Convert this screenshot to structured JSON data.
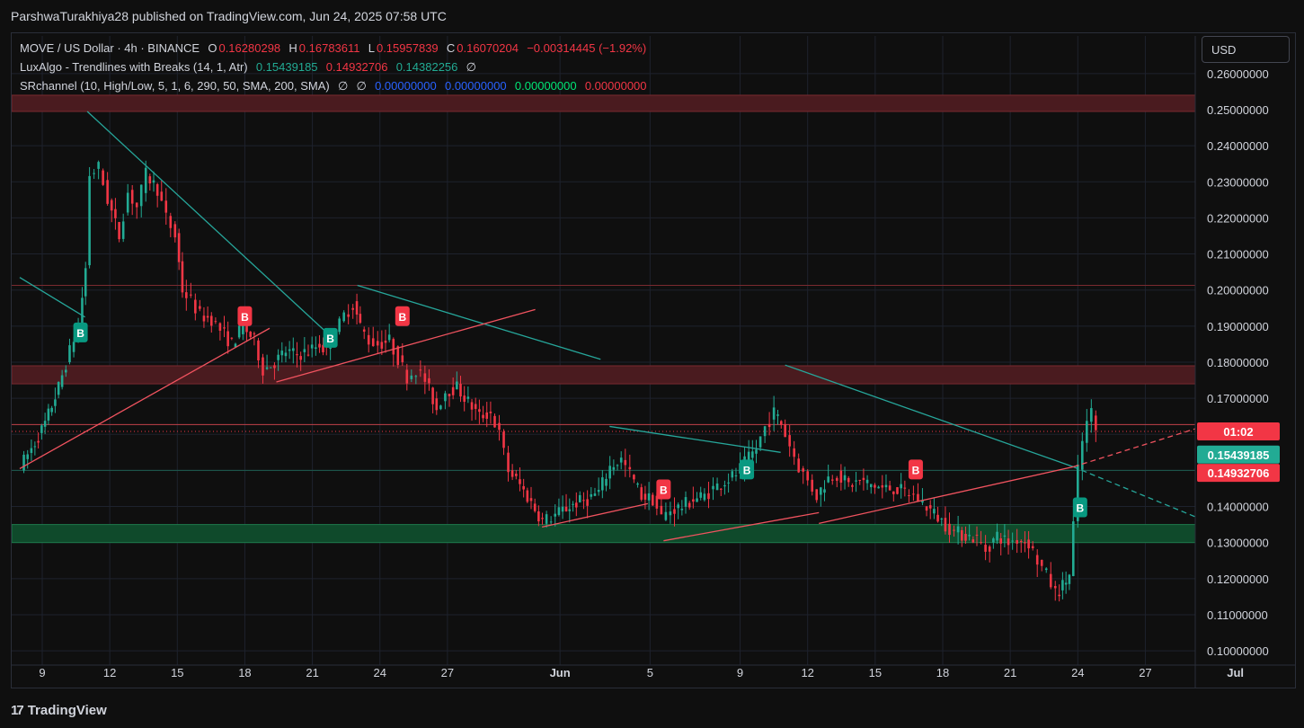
{
  "header": {
    "publish_line": "ParshwaTurakhiya28 published on TradingView.com, Jun 24, 2025 07:58 UTC"
  },
  "legend": {
    "symbol": "MOVE / US Dollar · 4h · BINANCE",
    "o_label": "O",
    "o_value": "0.16280298",
    "h_label": "H",
    "h_value": "0.16783611",
    "l_label": "L",
    "l_value": "0.15957839",
    "c_label": "C",
    "c_value": "0.16070204",
    "change": "−0.00314445 (−1.92%)",
    "lux_name": "LuxAlgo - Trendlines with Breaks (14, 1, Atr)",
    "lux_v1": "0.15439185",
    "lux_v2": "0.14932706",
    "lux_v3": "0.14382256",
    "lux_v4": "∅",
    "sr_name": "SRchannel (10, High/Low, 5, 1, 6, 290, 50, SMA, 200, SMA)",
    "sr_e1": "∅",
    "sr_e2": "∅",
    "sr_v1": "0.00000000",
    "sr_v2": "0.00000000",
    "sr_v3": "0.00000000",
    "sr_v4": "0.00000000"
  },
  "currency_button": "USD",
  "footer": {
    "logo_mark": "17",
    "brand": "TradingView"
  },
  "colors": {
    "up": "#22ab94",
    "down": "#f23645",
    "teal_line": "#26a69a",
    "resistance_zone": "#4a1b1f",
    "support_zone": "#0f4a2b",
    "grid": "#1e222d"
  },
  "chart_data": {
    "type": "candlestick",
    "timeframe": "4h",
    "ylim": [
      0.095,
      0.265
    ],
    "y_ticks": [
      "0.26000000",
      "0.25000000",
      "0.24000000",
      "0.23000000",
      "0.22000000",
      "0.21000000",
      "0.20000000",
      "0.19000000",
      "0.18000000",
      "0.17000000",
      "0.16000000",
      "0.15000000",
      "0.14000000",
      "0.13000000",
      "0.12000000",
      "0.11000000",
      "0.10000000"
    ],
    "x_range_days": [
      "2025-05-08",
      "2025-07-01"
    ],
    "x_ticks": [
      {
        "day": 9,
        "label": "9"
      },
      {
        "day": 12,
        "label": "12"
      },
      {
        "day": 15,
        "label": "15"
      },
      {
        "day": 18,
        "label": "18"
      },
      {
        "day": 21,
        "label": "21"
      },
      {
        "day": 24,
        "label": "24"
      },
      {
        "day": 27,
        "label": "27"
      },
      {
        "day": 32,
        "label": "Jun"
      },
      {
        "day": 36,
        "label": "5"
      },
      {
        "day": 40,
        "label": "9"
      },
      {
        "day": 43,
        "label": "12"
      },
      {
        "day": 46,
        "label": "15"
      },
      {
        "day": 49,
        "label": "18"
      },
      {
        "day": 52,
        "label": "21"
      },
      {
        "day": 55,
        "label": "24"
      },
      {
        "day": 58,
        "label": "27"
      },
      {
        "day": 62,
        "label": "Jul"
      }
    ],
    "price_path": [
      [
        8.1,
        0.151
      ],
      [
        8.6,
        0.156
      ],
      [
        9.2,
        0.163
      ],
      [
        9.8,
        0.173
      ],
      [
        10.3,
        0.183
      ],
      [
        10.7,
        0.19
      ],
      [
        11.0,
        0.206
      ],
      [
        11.2,
        0.232
      ],
      [
        11.6,
        0.234
      ],
      [
        12.0,
        0.225
      ],
      [
        12.5,
        0.215
      ],
      [
        12.9,
        0.227
      ],
      [
        13.3,
        0.223
      ],
      [
        13.7,
        0.232
      ],
      [
        14.2,
        0.228
      ],
      [
        14.6,
        0.22
      ],
      [
        15.0,
        0.215
      ],
      [
        15.3,
        0.2
      ],
      [
        15.7,
        0.197
      ],
      [
        16.1,
        0.193
      ],
      [
        16.6,
        0.192
      ],
      [
        17.0,
        0.189
      ],
      [
        17.5,
        0.185
      ],
      [
        18.0,
        0.19
      ],
      [
        18.5,
        0.186
      ],
      [
        18.9,
        0.178
      ],
      [
        19.4,
        0.18
      ],
      [
        19.9,
        0.183
      ],
      [
        20.4,
        0.182
      ],
      [
        20.9,
        0.183
      ],
      [
        21.4,
        0.185
      ],
      [
        21.7,
        0.183
      ],
      [
        22.1,
        0.188
      ],
      [
        22.5,
        0.193
      ],
      [
        22.9,
        0.196
      ],
      [
        23.2,
        0.19
      ],
      [
        23.6,
        0.186
      ],
      [
        24.0,
        0.185
      ],
      [
        24.5,
        0.186
      ],
      [
        24.9,
        0.181
      ],
      [
        25.3,
        0.176
      ],
      [
        25.7,
        0.178
      ],
      [
        26.1,
        0.175
      ],
      [
        26.6,
        0.167
      ],
      [
        27.0,
        0.172
      ],
      [
        27.5,
        0.173
      ],
      [
        28.0,
        0.169
      ],
      [
        28.5,
        0.165
      ],
      [
        29.0,
        0.166
      ],
      [
        29.4,
        0.16
      ],
      [
        29.8,
        0.15
      ],
      [
        30.3,
        0.146
      ],
      [
        30.8,
        0.141
      ],
      [
        31.3,
        0.136
      ],
      [
        31.7,
        0.137
      ],
      [
        32.2,
        0.139
      ],
      [
        32.8,
        0.141
      ],
      [
        33.3,
        0.142
      ],
      [
        33.8,
        0.144
      ],
      [
        34.3,
        0.151
      ],
      [
        34.8,
        0.153
      ],
      [
        35.2,
        0.149
      ],
      [
        35.7,
        0.143
      ],
      [
        36.2,
        0.142
      ],
      [
        36.6,
        0.137
      ],
      [
        37.0,
        0.139
      ],
      [
        37.5,
        0.14
      ],
      [
        38.0,
        0.142
      ],
      [
        38.5,
        0.143
      ],
      [
        38.9,
        0.145
      ],
      [
        39.4,
        0.147
      ],
      [
        39.9,
        0.149
      ],
      [
        40.3,
        0.152
      ],
      [
        40.8,
        0.156
      ],
      [
        41.2,
        0.162
      ],
      [
        41.6,
        0.166
      ],
      [
        41.9,
        0.163
      ],
      [
        42.3,
        0.157
      ],
      [
        42.7,
        0.151
      ],
      [
        43.1,
        0.147
      ],
      [
        43.5,
        0.143
      ],
      [
        44.0,
        0.148
      ],
      [
        44.4,
        0.149
      ],
      [
        44.9,
        0.146
      ],
      [
        45.4,
        0.147
      ],
      [
        45.9,
        0.146
      ],
      [
        46.4,
        0.145
      ],
      [
        46.9,
        0.145
      ],
      [
        47.4,
        0.144
      ],
      [
        47.8,
        0.143
      ],
      [
        48.2,
        0.141
      ],
      [
        48.7,
        0.138
      ],
      [
        49.2,
        0.135
      ],
      [
        49.6,
        0.133
      ],
      [
        50.1,
        0.132
      ],
      [
        50.6,
        0.131
      ],
      [
        51.0,
        0.128
      ],
      [
        51.5,
        0.132
      ],
      [
        52.0,
        0.13
      ],
      [
        52.4,
        0.131
      ],
      [
        52.9,
        0.13
      ],
      [
        53.3,
        0.125
      ],
      [
        53.7,
        0.121
      ],
      [
        54.1,
        0.116
      ],
      [
        54.4,
        0.118
      ],
      [
        54.7,
        0.121
      ],
      [
        54.9,
        0.135
      ],
      [
        55.1,
        0.15
      ],
      [
        55.3,
        0.158
      ],
      [
        55.5,
        0.163
      ],
      [
        55.7,
        0.166
      ],
      [
        55.9,
        0.161
      ]
    ],
    "zones": [
      {
        "name": "resistance-high",
        "from": 0.2495,
        "to": 0.254,
        "color": "#4a1b1f"
      },
      {
        "name": "resistance-mid",
        "from": 0.174,
        "to": 0.179,
        "color": "#4a1b1f"
      },
      {
        "name": "support-low",
        "from": 0.13,
        "to": 0.135,
        "color": "#0f4a2b"
      }
    ],
    "h_lines": [
      {
        "price": 0.2013,
        "color": "#7a2a30"
      },
      {
        "price": 0.1627,
        "color": "#c2404a"
      },
      {
        "price": 0.1608,
        "color": "#f23645",
        "dotted": true
      },
      {
        "price": 0.15,
        "color": "#1d5c50"
      }
    ],
    "trendlines": [
      {
        "kind": "resistance",
        "from": [
          8.0,
          0.2035
        ],
        "to": [
          10.9,
          0.1925
        ]
      },
      {
        "kind": "resistance",
        "from": [
          11.0,
          0.2495
        ],
        "to": [
          21.9,
          0.1867
        ]
      },
      {
        "kind": "resistance",
        "from": [
          23.0,
          0.2013
        ],
        "to": [
          33.8,
          0.1808
        ]
      },
      {
        "kind": "resistance",
        "from": [
          34.2,
          0.1622
        ],
        "to": [
          41.8,
          0.155
        ]
      },
      {
        "kind": "resistance",
        "from": [
          42.0,
          0.1792
        ],
        "to": [
          54.8,
          0.151
        ]
      },
      {
        "kind": "resistance",
        "from": [
          54.8,
          0.151
        ],
        "to": [
          62.0,
          0.1326
        ],
        "dashed": true
      },
      {
        "kind": "support",
        "from": [
          8.0,
          0.1505
        ],
        "to": [
          19.1,
          0.1894
        ]
      },
      {
        "kind": "support",
        "from": [
          19.4,
          0.1745
        ],
        "to": [
          30.9,
          0.1946
        ]
      },
      {
        "kind": "support",
        "from": [
          31.2,
          0.1343
        ],
        "to": [
          35.9,
          0.1408
        ]
      },
      {
        "kind": "support",
        "from": [
          36.6,
          0.1305
        ],
        "to": [
          43.5,
          0.1383
        ]
      },
      {
        "kind": "support",
        "from": [
          43.5,
          0.1353
        ],
        "to": [
          54.8,
          0.151
        ]
      },
      {
        "kind": "support",
        "from": [
          54.8,
          0.151
        ],
        "to": [
          62.0,
          0.165
        ],
        "dashed": true
      }
    ],
    "break_labels": [
      {
        "day": 10.7,
        "price": 0.188,
        "text": "B",
        "kind": "bull"
      },
      {
        "day": 18.0,
        "price": 0.1925,
        "text": "B",
        "kind": "bear"
      },
      {
        "day": 21.8,
        "price": 0.1865,
        "text": "B",
        "kind": "bull"
      },
      {
        "day": 25.0,
        "price": 0.1925,
        "text": "B",
        "kind": "bear"
      },
      {
        "day": 36.6,
        "price": 0.1445,
        "text": "B",
        "kind": "bear"
      },
      {
        "day": 40.3,
        "price": 0.15,
        "text": "B",
        "kind": "bull"
      },
      {
        "day": 47.8,
        "price": 0.15,
        "text": "B",
        "kind": "bear"
      },
      {
        "day": 55.1,
        "price": 0.1395,
        "text": "B",
        "kind": "bull"
      }
    ],
    "price_labels": [
      {
        "text": "01:02",
        "price": 0.1608,
        "color": "#f23645"
      },
      {
        "text": "0.15439185",
        "price": 0.15439,
        "color": "#22ab94"
      },
      {
        "text": "0.14932706",
        "price": 0.14933,
        "color": "#f23645"
      }
    ]
  }
}
